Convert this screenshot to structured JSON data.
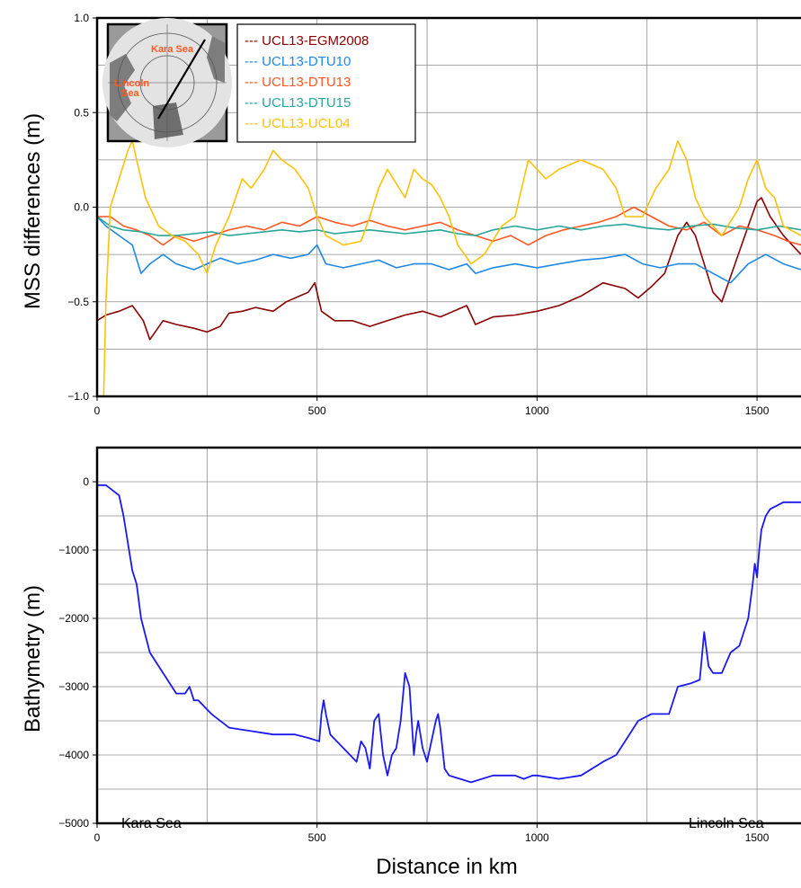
{
  "chart_data": [
    {
      "type": "line",
      "title": "",
      "xlabel": "",
      "ylabel": "MSS differences (m)",
      "xlim": [
        0,
        1600
      ],
      "ylim": [
        -1.0,
        1.0
      ],
      "x_ticks": [
        0,
        500,
        1000,
        1500
      ],
      "x_tick_labels": [
        "0",
        "500",
        "1000",
        "1500"
      ],
      "y_ticks": [
        -1.0,
        -0.5,
        0.0,
        0.5,
        1.0
      ],
      "y_tick_labels": [
        "−1.0",
        "−0.5",
        "0.0",
        "0.5",
        "1.0"
      ],
      "grid": true,
      "legend_position": "top-left",
      "inset_map": {
        "labels": [
          "Kara Sea",
          "Lincoln Sea"
        ],
        "inset_position": "top-left"
      },
      "series": [
        {
          "name": "--- UCL13-EGM2008",
          "color": "#8b0000",
          "x": [
            0,
            20,
            50,
            80,
            105,
            120,
            150,
            180,
            220,
            250,
            280,
            300,
            330,
            360,
            400,
            430,
            460,
            480,
            495,
            510,
            540,
            580,
            620,
            660,
            700,
            740,
            780,
            810,
            840,
            860,
            900,
            950,
            1000,
            1050,
            1100,
            1150,
            1200,
            1230,
            1260,
            1290,
            1320,
            1340,
            1360,
            1380,
            1400,
            1420,
            1450,
            1480,
            1500,
            1510,
            1530,
            1560,
            1600
          ],
          "y": [
            -0.6,
            -0.57,
            -0.55,
            -0.52,
            -0.6,
            -0.7,
            -0.6,
            -0.62,
            -0.64,
            -0.66,
            -0.63,
            -0.56,
            -0.55,
            -0.53,
            -0.55,
            -0.5,
            -0.47,
            -0.45,
            -0.4,
            -0.55,
            -0.6,
            -0.6,
            -0.63,
            -0.6,
            -0.57,
            -0.55,
            -0.58,
            -0.55,
            -0.52,
            -0.62,
            -0.58,
            -0.57,
            -0.55,
            -0.52,
            -0.47,
            -0.4,
            -0.43,
            -0.48,
            -0.42,
            -0.35,
            -0.15,
            -0.08,
            -0.15,
            -0.3,
            -0.45,
            -0.5,
            -0.3,
            -0.1,
            0.03,
            0.05,
            -0.05,
            -0.15,
            -0.25
          ]
        },
        {
          "name": "--- UCL13-DTU10",
          "color": "#1e88e5",
          "x": [
            0,
            20,
            50,
            80,
            100,
            120,
            150,
            180,
            220,
            250,
            280,
            320,
            360,
            400,
            440,
            480,
            500,
            520,
            560,
            600,
            640,
            680,
            720,
            760,
            800,
            840,
            860,
            900,
            950,
            1000,
            1050,
            1100,
            1150,
            1200,
            1240,
            1280,
            1320,
            1360,
            1400,
            1440,
            1480,
            1520,
            1560,
            1600
          ],
          "y": [
            -0.05,
            -0.1,
            -0.15,
            -0.2,
            -0.35,
            -0.3,
            -0.25,
            -0.3,
            -0.33,
            -0.3,
            -0.27,
            -0.3,
            -0.28,
            -0.25,
            -0.27,
            -0.25,
            -0.2,
            -0.3,
            -0.32,
            -0.3,
            -0.28,
            -0.32,
            -0.3,
            -0.3,
            -0.33,
            -0.3,
            -0.35,
            -0.32,
            -0.3,
            -0.32,
            -0.3,
            -0.28,
            -0.27,
            -0.25,
            -0.3,
            -0.32,
            -0.3,
            -0.3,
            -0.35,
            -0.4,
            -0.3,
            -0.25,
            -0.3,
            -0.33
          ]
        },
        {
          "name": "--- UCL13-DTU13",
          "color": "#ff5722",
          "x": [
            0,
            30,
            60,
            90,
            120,
            150,
            180,
            220,
            260,
            300,
            340,
            380,
            420,
            460,
            500,
            540,
            580,
            620,
            660,
            700,
            740,
            780,
            820,
            860,
            900,
            940,
            980,
            1020,
            1060,
            1100,
            1140,
            1180,
            1220,
            1260,
            1300,
            1340,
            1380,
            1420,
            1460,
            1500,
            1540,
            1570,
            1600
          ],
          "y": [
            -0.05,
            -0.05,
            -0.1,
            -0.12,
            -0.15,
            -0.2,
            -0.15,
            -0.18,
            -0.15,
            -0.12,
            -0.1,
            -0.12,
            -0.08,
            -0.1,
            -0.05,
            -0.08,
            -0.1,
            -0.07,
            -0.1,
            -0.12,
            -0.1,
            -0.08,
            -0.12,
            -0.15,
            -0.18,
            -0.15,
            -0.2,
            -0.15,
            -0.12,
            -0.1,
            -0.08,
            -0.05,
            0.0,
            -0.05,
            -0.1,
            -0.12,
            -0.08,
            -0.15,
            -0.1,
            -0.12,
            -0.15,
            -0.18,
            -0.2
          ]
        },
        {
          "name": "--- UCL13-DTU15",
          "color": "#26a69a",
          "x": [
            0,
            30,
            60,
            100,
            140,
            180,
            220,
            260,
            300,
            340,
            380,
            420,
            460,
            500,
            540,
            580,
            620,
            660,
            700,
            740,
            780,
            820,
            860,
            900,
            950,
            1000,
            1050,
            1100,
            1150,
            1200,
            1250,
            1300,
            1350,
            1400,
            1450,
            1500,
            1550,
            1600
          ],
          "y": [
            -0.05,
            -0.1,
            -0.12,
            -0.13,
            -0.15,
            -0.15,
            -0.14,
            -0.13,
            -0.15,
            -0.14,
            -0.13,
            -0.12,
            -0.13,
            -0.12,
            -0.14,
            -0.13,
            -0.12,
            -0.13,
            -0.14,
            -0.13,
            -0.12,
            -0.14,
            -0.15,
            -0.12,
            -0.1,
            -0.12,
            -0.1,
            -0.12,
            -0.1,
            -0.09,
            -0.11,
            -0.12,
            -0.1,
            -0.09,
            -0.11,
            -0.12,
            -0.1,
            -0.12
          ]
        },
        {
          "name": "--- UCL13-UCL04",
          "color": "#ffc107",
          "x": [
            15,
            20,
            30,
            50,
            70,
            80,
            90,
            110,
            140,
            170,
            200,
            230,
            250,
            270,
            300,
            330,
            350,
            380,
            400,
            420,
            450,
            480,
            500,
            520,
            560,
            600,
            620,
            640,
            660,
            700,
            720,
            740,
            760,
            780,
            800,
            820,
            850,
            880,
            920,
            950,
            960,
            980,
            1000,
            1020,
            1050,
            1100,
            1150,
            1180,
            1200,
            1240,
            1270,
            1300,
            1320,
            1340,
            1360,
            1380,
            1420,
            1460,
            1480,
            1500,
            1520,
            1540,
            1560,
            1600
          ],
          "y": [
            -1.0,
            -0.5,
            0.0,
            0.15,
            0.3,
            0.35,
            0.25,
            0.05,
            -0.1,
            -0.15,
            -0.18,
            -0.25,
            -0.35,
            -0.2,
            -0.05,
            0.15,
            0.1,
            0.2,
            0.3,
            0.25,
            0.2,
            0.1,
            -0.05,
            -0.15,
            -0.2,
            -0.18,
            -0.05,
            0.1,
            0.2,
            0.05,
            0.2,
            0.15,
            0.12,
            0.05,
            -0.05,
            -0.2,
            -0.3,
            -0.25,
            -0.1,
            -0.05,
            0.05,
            0.25,
            0.2,
            0.15,
            0.2,
            0.25,
            0.2,
            0.1,
            -0.05,
            -0.05,
            0.1,
            0.2,
            0.35,
            0.25,
            0.05,
            -0.05,
            -0.15,
            0.0,
            0.15,
            0.25,
            0.1,
            0.05,
            -0.1,
            -0.15
          ]
        }
      ]
    },
    {
      "type": "line",
      "title": "",
      "xlabel": "Distance in km",
      "ylabel": "Bathymetry (m)",
      "xlim": [
        0,
        1600
      ],
      "ylim": [
        -5000,
        500
      ],
      "x_ticks": [
        0,
        500,
        1000,
        1500
      ],
      "x_tick_labels": [
        "0",
        "500",
        "1000",
        "1500"
      ],
      "y_ticks": [
        -5000,
        -4000,
        -3000,
        -2000,
        -1000,
        0
      ],
      "y_tick_labels": [
        "−5000",
        "−4000",
        "−3000",
        "−2000",
        "−1000",
        "0"
      ],
      "grid": true,
      "annotations": [
        "Kara Sea",
        "Lincoln Sea"
      ],
      "series": [
        {
          "color": "#1a1aee",
          "x": [
            0,
            20,
            30,
            50,
            60,
            80,
            90,
            100,
            120,
            140,
            160,
            180,
            200,
            210,
            220,
            230,
            260,
            300,
            350,
            400,
            450,
            480,
            505,
            510,
            515,
            520,
            530,
            560,
            590,
            600,
            610,
            620,
            630,
            640,
            650,
            660,
            670,
            680,
            690,
            700,
            710,
            720,
            725,
            730,
            740,
            750,
            760,
            770,
            775,
            780,
            790,
            800,
            850,
            900,
            950,
            970,
            990,
            1000,
            1050,
            1100,
            1150,
            1180,
            1200,
            1230,
            1260,
            1300,
            1320,
            1350,
            1370,
            1380,
            1390,
            1400,
            1420,
            1440,
            1460,
            1480,
            1490,
            1495,
            1500,
            1505,
            1510,
            1520,
            1530,
            1560,
            1600
          ],
          "y": [
            -50,
            -50,
            -100,
            -200,
            -500,
            -1300,
            -1500,
            -2000,
            -2500,
            -2700,
            -2900,
            -3100,
            -3100,
            -3000,
            -3200,
            -3200,
            -3400,
            -3600,
            -3650,
            -3700,
            -3700,
            -3750,
            -3800,
            -3400,
            -3200,
            -3400,
            -3700,
            -3900,
            -4100,
            -3800,
            -3900,
            -4200,
            -3500,
            -3400,
            -4000,
            -4300,
            -4000,
            -3900,
            -3500,
            -2800,
            -3000,
            -4000,
            -3700,
            -3500,
            -3900,
            -4100,
            -3800,
            -3500,
            -3400,
            -3600,
            -4200,
            -4300,
            -4400,
            -4300,
            -4300,
            -4350,
            -4300,
            -4300,
            -4350,
            -4300,
            -4100,
            -4000,
            -3800,
            -3500,
            -3400,
            -3400,
            -3000,
            -2950,
            -2900,
            -2200,
            -2700,
            -2800,
            -2800,
            -2500,
            -2400,
            -2000,
            -1500,
            -1200,
            -1400,
            -1000,
            -700,
            -500,
            -400,
            -300,
            -300
          ]
        }
      ]
    }
  ]
}
